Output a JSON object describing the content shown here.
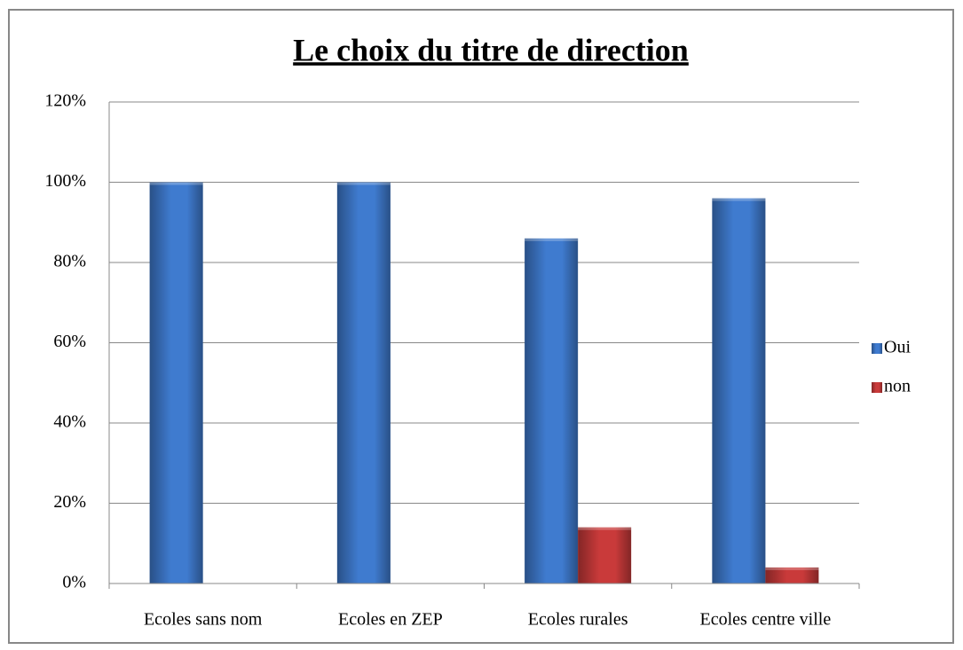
{
  "chart_data": {
    "type": "bar",
    "title": "Le choix du titre de direction",
    "categories": [
      "Ecoles sans nom",
      "Ecoles en ZEP",
      "Ecoles rurales",
      "Ecoles centre ville"
    ],
    "series": [
      {
        "name": "Oui",
        "color": "#3f7bcf",
        "values": [
          100,
          100,
          86,
          96
        ]
      },
      {
        "name": "non",
        "color": "#c93a3a",
        "values": [
          0,
          0,
          14,
          4
        ]
      }
    ],
    "ylim": [
      0,
      120
    ],
    "yticks": [
      {
        "value": 0,
        "label": "0%"
      },
      {
        "value": 20,
        "label": "20%"
      },
      {
        "value": 40,
        "label": "40%"
      },
      {
        "value": 60,
        "label": "60%"
      },
      {
        "value": 80,
        "label": "80%"
      },
      {
        "value": 100,
        "label": "100%"
      },
      {
        "value": 120,
        "label": "120%"
      }
    ],
    "grid": true,
    "legend": "right"
  }
}
